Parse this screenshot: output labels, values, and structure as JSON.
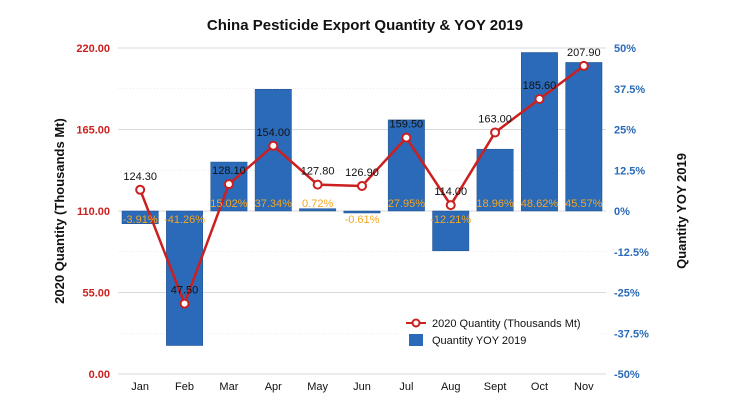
{
  "chart_data": {
    "type": "bar-line-combo",
    "title": "China Pesticide Export Quantity & YOY 2019",
    "categories": [
      "Jan",
      "Feb",
      "Mar",
      "Apr",
      "May",
      "Jun",
      "Jul",
      "Aug",
      "Sept",
      "Oct",
      "Nov"
    ],
    "series": [
      {
        "name": "2020 Quantity (Thousands Mt)",
        "type": "line",
        "axis": "left",
        "values": [
          124.3,
          47.5,
          128.1,
          154.0,
          127.8,
          126.9,
          159.5,
          114.0,
          163.0,
          185.6,
          207.9
        ],
        "labels": [
          "124.30",
          "47.50",
          "128.10",
          "154.00",
          "127.80",
          "126.90",
          "159.50",
          "114.00",
          "163.00",
          "185.60",
          "207.90"
        ]
      },
      {
        "name": "Quantity YOY 2019",
        "type": "bar",
        "axis": "right",
        "values": [
          -3.91,
          -41.26,
          15.02,
          37.34,
          0.72,
          -0.61,
          27.95,
          -12.21,
          18.96,
          48.62,
          45.57
        ],
        "labels": [
          "-3.91%",
          "-41.26%",
          "15.02%",
          "37.34%",
          "0.72%",
          "-0.61%",
          "27.95%",
          "-12.21%",
          "18.96%",
          "48.62%",
          "45.57%"
        ]
      }
    ],
    "ylabel_left": "2020 Quantity (Thousands Mt)",
    "ylabel_right": "Quantity YOY 2019",
    "ylim_left": [
      0,
      220
    ],
    "ylim_right": [
      -50,
      50
    ],
    "yticks_left": [
      "0.00",
      "55.00",
      "110.00",
      "165.00",
      "220.00"
    ],
    "yticks_right": [
      "-50%",
      "-37.5%",
      "-25%",
      "-12.5%",
      "0%",
      "12.5%",
      "25%",
      "37.5%",
      "50%"
    ],
    "grid": true,
    "legend_position": "bottom-right",
    "colors": {
      "line": "#cc1f1f",
      "marker_fill": "#ffffff",
      "bar": "#2a6ab8",
      "bar_label": "#f5a623",
      "left_axis": "#cc1f1f",
      "right_axis": "#2a6ab8",
      "grid": "#d9d9d9"
    }
  }
}
